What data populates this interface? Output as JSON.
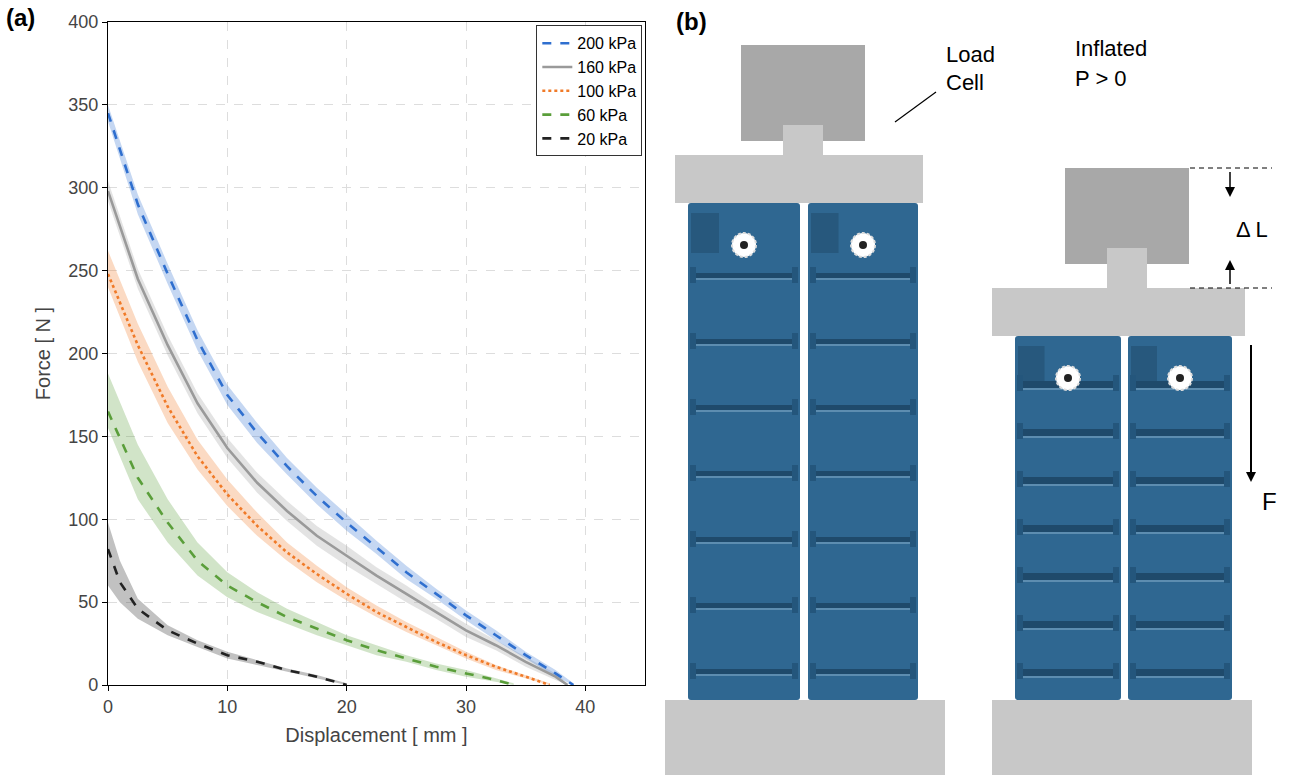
{
  "chart_data": {
    "type": "line",
    "panel_label": "(a)",
    "x_label": "Displacement [ mm ]",
    "y_label": "Force [ N ]",
    "xlim": [
      0,
      45
    ],
    "xticks": [
      0,
      10,
      20,
      30,
      40
    ],
    "ylim": [
      0,
      400
    ],
    "yticks": [
      0,
      50,
      100,
      150,
      200,
      250,
      300,
      350,
      400
    ],
    "grid": true,
    "legend": "top-right",
    "series": [
      {
        "name": "20 kPa",
        "color": "#222222",
        "line_style": "dashed",
        "x": [
          0,
          1,
          2.5,
          5,
          7.5,
          10,
          12.5,
          15,
          17.5,
          20
        ],
        "values": [
          82,
          62,
          46,
          33,
          25,
          18,
          14,
          9,
          5,
          0
        ],
        "upper": [
          98,
          75,
          52,
          36,
          27,
          20,
          15,
          10,
          6,
          1
        ],
        "lower": [
          60,
          50,
          40,
          30,
          23,
          16,
          12,
          8,
          4,
          0
        ]
      },
      {
        "name": "60 kPa",
        "color": "#5a9e3a",
        "line_style": "dashed",
        "x": [
          0,
          2.5,
          5,
          7.5,
          10,
          12.5,
          15,
          17.5,
          20,
          22.5,
          25,
          27.5,
          30,
          32.5,
          34
        ],
        "values": [
          165,
          125,
          98,
          75,
          60,
          50,
          41,
          34,
          27,
          21,
          16,
          11,
          7,
          3,
          0
        ],
        "upper": [
          188,
          145,
          112,
          86,
          68,
          56,
          46,
          38,
          30,
          24,
          18,
          13,
          9,
          4,
          1
        ],
        "lower": [
          155,
          112,
          86,
          66,
          53,
          44,
          37,
          30,
          24,
          18,
          14,
          9,
          5,
          2,
          0
        ]
      },
      {
        "name": "100 kPa",
        "color": "#f07a28",
        "line_style": "dotted",
        "x": [
          0,
          2.5,
          5,
          7.5,
          10,
          12.5,
          15,
          17.5,
          20,
          22.5,
          25,
          27.5,
          30,
          32.5,
          35,
          37
        ],
        "values": [
          248,
          205,
          168,
          138,
          115,
          96,
          80,
          67,
          55,
          44,
          35,
          26,
          18,
          11,
          5,
          0
        ],
        "upper": [
          262,
          218,
          180,
          148,
          124,
          104,
          86,
          72,
          59,
          48,
          38,
          29,
          20,
          12,
          6,
          1
        ],
        "lower": [
          240,
          195,
          158,
          130,
          108,
          90,
          75,
          62,
          51,
          41,
          32,
          24,
          16,
          9,
          4,
          0
        ]
      },
      {
        "name": "160 kPa",
        "color": "#9a9a9a",
        "line_style": "solid",
        "x": [
          0,
          2.5,
          5,
          7.5,
          10,
          12.5,
          15,
          17.5,
          20,
          22.5,
          25,
          27.5,
          30,
          32.5,
          35,
          37.5,
          38.5
        ],
        "values": [
          298,
          245,
          205,
          170,
          143,
          122,
          105,
          90,
          78,
          66,
          55,
          44,
          33,
          24,
          14,
          5,
          0
        ],
        "upper": [
          304,
          251,
          211,
          176,
          149,
          128,
          111,
          96,
          84,
          71,
          60,
          48,
          37,
          27,
          17,
          7,
          1
        ],
        "lower": [
          292,
          239,
          199,
          164,
          137,
          116,
          99,
          84,
          72,
          61,
          50,
          40,
          29,
          21,
          11,
          3,
          0
        ]
      },
      {
        "name": "200 kPa",
        "color": "#2f6fcf",
        "line_style": "dashed",
        "x": [
          0,
          2.5,
          5,
          7.5,
          10,
          12.5,
          15,
          17.5,
          20,
          22.5,
          25,
          27.5,
          30,
          32.5,
          35,
          37.5,
          39
        ],
        "values": [
          345,
          290,
          248,
          208,
          175,
          152,
          132,
          114,
          98,
          83,
          68,
          55,
          42,
          30,
          18,
          7,
          0
        ],
        "upper": [
          350,
          296,
          254,
          214,
          181,
          158,
          137,
          119,
          103,
          87,
          72,
          58,
          45,
          33,
          20,
          9,
          1
        ],
        "lower": [
          340,
          284,
          242,
          202,
          169,
          146,
          127,
          109,
          93,
          79,
          64,
          52,
          39,
          27,
          16,
          5,
          0
        ]
      }
    ]
  },
  "diagram": {
    "panel_label": "(b)",
    "load_cell_label": "Load Cell",
    "state_label": "Inflated",
    "pressure_label": "P > 0",
    "displacement_label": "Δ L",
    "force_label": "F"
  }
}
